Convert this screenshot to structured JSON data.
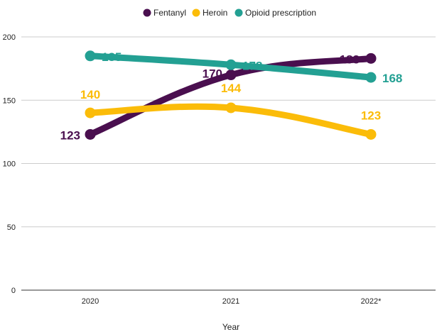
{
  "chart_data": {
    "type": "line",
    "title": "",
    "xlabel": "Year",
    "ylabel": "",
    "categories": [
      "2020",
      "2021",
      "2022*"
    ],
    "ylim": [
      0,
      200
    ],
    "yticks": [
      "0",
      "50",
      "100",
      "150",
      "200"
    ],
    "grid": true,
    "legend_position": "top-center",
    "series": [
      {
        "name": "Fentanyl",
        "values": [
          123,
          170,
          183
        ],
        "color": "#4a0f4f",
        "labels": [
          "123",
          "170",
          "183"
        ]
      },
      {
        "name": "Heroin",
        "values": [
          140,
          144,
          123
        ],
        "color": "#fbbc09",
        "labels": [
          "140",
          "144",
          "123"
        ]
      },
      {
        "name": "Opioid prescription",
        "values": [
          185,
          178,
          168
        ],
        "color": "#23a093",
        "labels": [
          "185",
          "178",
          "168"
        ]
      }
    ]
  }
}
